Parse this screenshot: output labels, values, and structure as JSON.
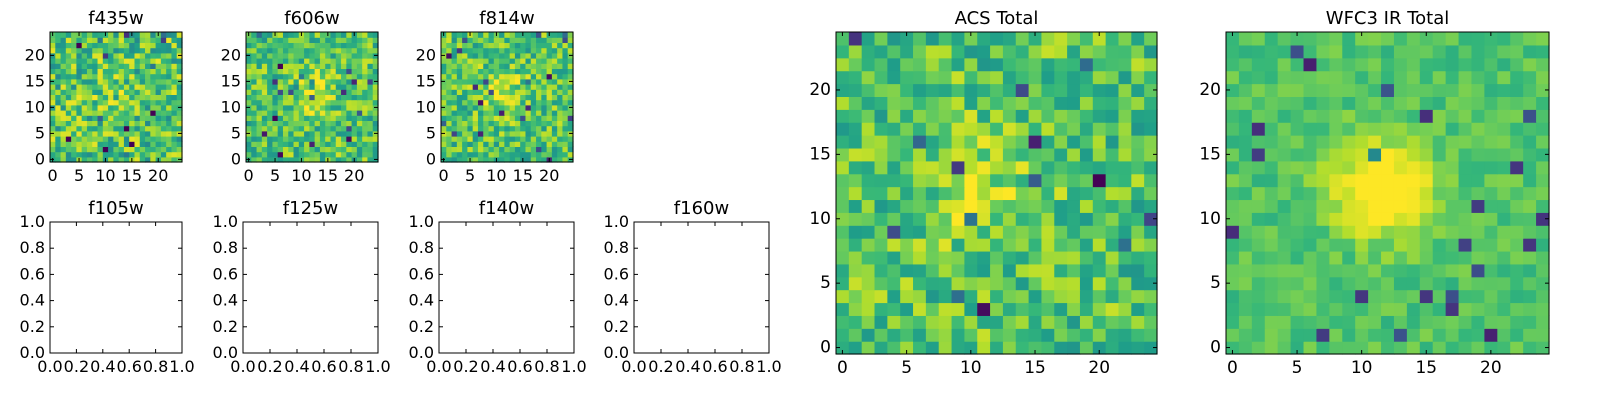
{
  "chart_data": [
    {
      "type": "heatmap",
      "title": "f435w",
      "xticks": [
        "0",
        "5",
        "10",
        "15",
        "20"
      ],
      "yticks": [
        "0",
        "5",
        "10",
        "15",
        "20"
      ],
      "xlim": [
        -0.5,
        24.5
      ],
      "ylim": [
        -0.5,
        24.5
      ],
      "grid_size": 25,
      "colormap": "viridis",
      "seed": 11,
      "blob": {
        "center": [
          12,
          12
        ],
        "sigma": 3.5,
        "amplitude": 0.05
      },
      "noise": 0.5
    },
    {
      "type": "heatmap",
      "title": "f606w",
      "xticks": [
        "0",
        "5",
        "10",
        "15",
        "20"
      ],
      "yticks": [
        "0",
        "5",
        "10",
        "15",
        "20"
      ],
      "xlim": [
        -0.5,
        24.5
      ],
      "ylim": [
        -0.5,
        24.5
      ],
      "grid_size": 25,
      "colormap": "viridis",
      "seed": 23,
      "blob": {
        "center": [
          12,
          13
        ],
        "sigma": 3.0,
        "amplitude": 0.18
      },
      "noise": 0.42
    },
    {
      "type": "heatmap",
      "title": "f814w",
      "xticks": [
        "0",
        "5",
        "10",
        "15",
        "20"
      ],
      "yticks": [
        "0",
        "5",
        "10",
        "15",
        "20"
      ],
      "xlim": [
        -0.5,
        24.5
      ],
      "ylim": [
        -0.5,
        24.5
      ],
      "grid_size": 25,
      "colormap": "viridis",
      "seed": 37,
      "blob": {
        "center": [
          11,
          13
        ],
        "sigma": 3.0,
        "amplitude": 0.2
      },
      "noise": 0.42
    },
    {
      "type": "empty",
      "title": "f105w",
      "xticks": [
        "0.0",
        "0.2",
        "0.4",
        "0.6",
        "0.8",
        "1.0"
      ],
      "yticks": [
        "0.0",
        "0.2",
        "0.4",
        "0.6",
        "0.8",
        "1.0"
      ],
      "xlim": [
        0,
        1
      ],
      "ylim": [
        0,
        1
      ]
    },
    {
      "type": "empty",
      "title": "f125w",
      "xticks": [
        "0.0",
        "0.2",
        "0.4",
        "0.6",
        "0.8",
        "1.0"
      ],
      "yticks": [
        "0.0",
        "0.2",
        "0.4",
        "0.6",
        "0.8",
        "1.0"
      ],
      "xlim": [
        0,
        1
      ],
      "ylim": [
        0,
        1
      ]
    },
    {
      "type": "empty",
      "title": "f140w",
      "xticks": [
        "0.0",
        "0.2",
        "0.4",
        "0.6",
        "0.8",
        "1.0"
      ],
      "yticks": [
        "0.0",
        "0.2",
        "0.4",
        "0.6",
        "0.8",
        "1.0"
      ],
      "xlim": [
        0,
        1
      ],
      "ylim": [
        0,
        1
      ]
    },
    {
      "type": "empty",
      "title": "f160w",
      "xticks": [
        "0.0",
        "0.2",
        "0.4",
        "0.6",
        "0.8",
        "1.0"
      ],
      "yticks": [
        "0.0",
        "0.2",
        "0.4",
        "0.6",
        "0.8",
        "1.0"
      ],
      "xlim": [
        0,
        1
      ],
      "ylim": [
        0,
        1
      ]
    },
    {
      "type": "heatmap",
      "title": "ACS Total",
      "xticks": [
        "0",
        "5",
        "10",
        "15",
        "20"
      ],
      "yticks": [
        "0",
        "5",
        "10",
        "15",
        "20"
      ],
      "xlim": [
        -0.5,
        24.5
      ],
      "ylim": [
        -0.5,
        24.5
      ],
      "grid_size": 25,
      "colormap": "viridis",
      "seed": 53,
      "blob": {
        "center": [
          11,
          12
        ],
        "sigma": 3.2,
        "amplitude": 0.15
      },
      "noise": 0.4
    },
    {
      "type": "heatmap",
      "title": "WFC3 IR Total",
      "xticks": [
        "0",
        "5",
        "10",
        "15",
        "20"
      ],
      "yticks": [
        "0",
        "5",
        "10",
        "15",
        "20"
      ],
      "xlim": [
        -0.5,
        24.5
      ],
      "ylim": [
        -0.5,
        24.5
      ],
      "grid_size": 25,
      "colormap": "viridis",
      "seed": 71,
      "blob": {
        "center": [
          11.5,
          12.5
        ],
        "sigma": 2.6,
        "amplitude": 0.42
      },
      "noise": 0.18
    }
  ]
}
